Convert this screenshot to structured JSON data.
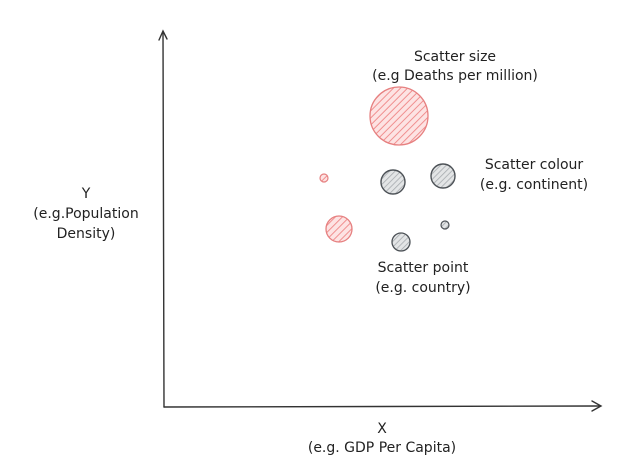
{
  "axes": {
    "x_label": "X",
    "x_sublabel": "(e.g. GDP Per Capita)",
    "y_label": "Y",
    "y_sublabel_1": "(e.g.Population",
    "y_sublabel_2": "Density)"
  },
  "annotations": {
    "size_title": "Scatter size",
    "size_example": "(e.g Deaths per million)",
    "colour_title": "Scatter colour",
    "colour_example": "(e.g. continent)",
    "point_title": "Scatter point",
    "point_example": "(e.g. country)"
  },
  "colors": {
    "red_fill": "#f7b9b9",
    "red_stroke": "#e57c7c",
    "grey_fill": "#c9cbcc",
    "grey_stroke": "#4a4f54",
    "axis": "#333333"
  }
}
